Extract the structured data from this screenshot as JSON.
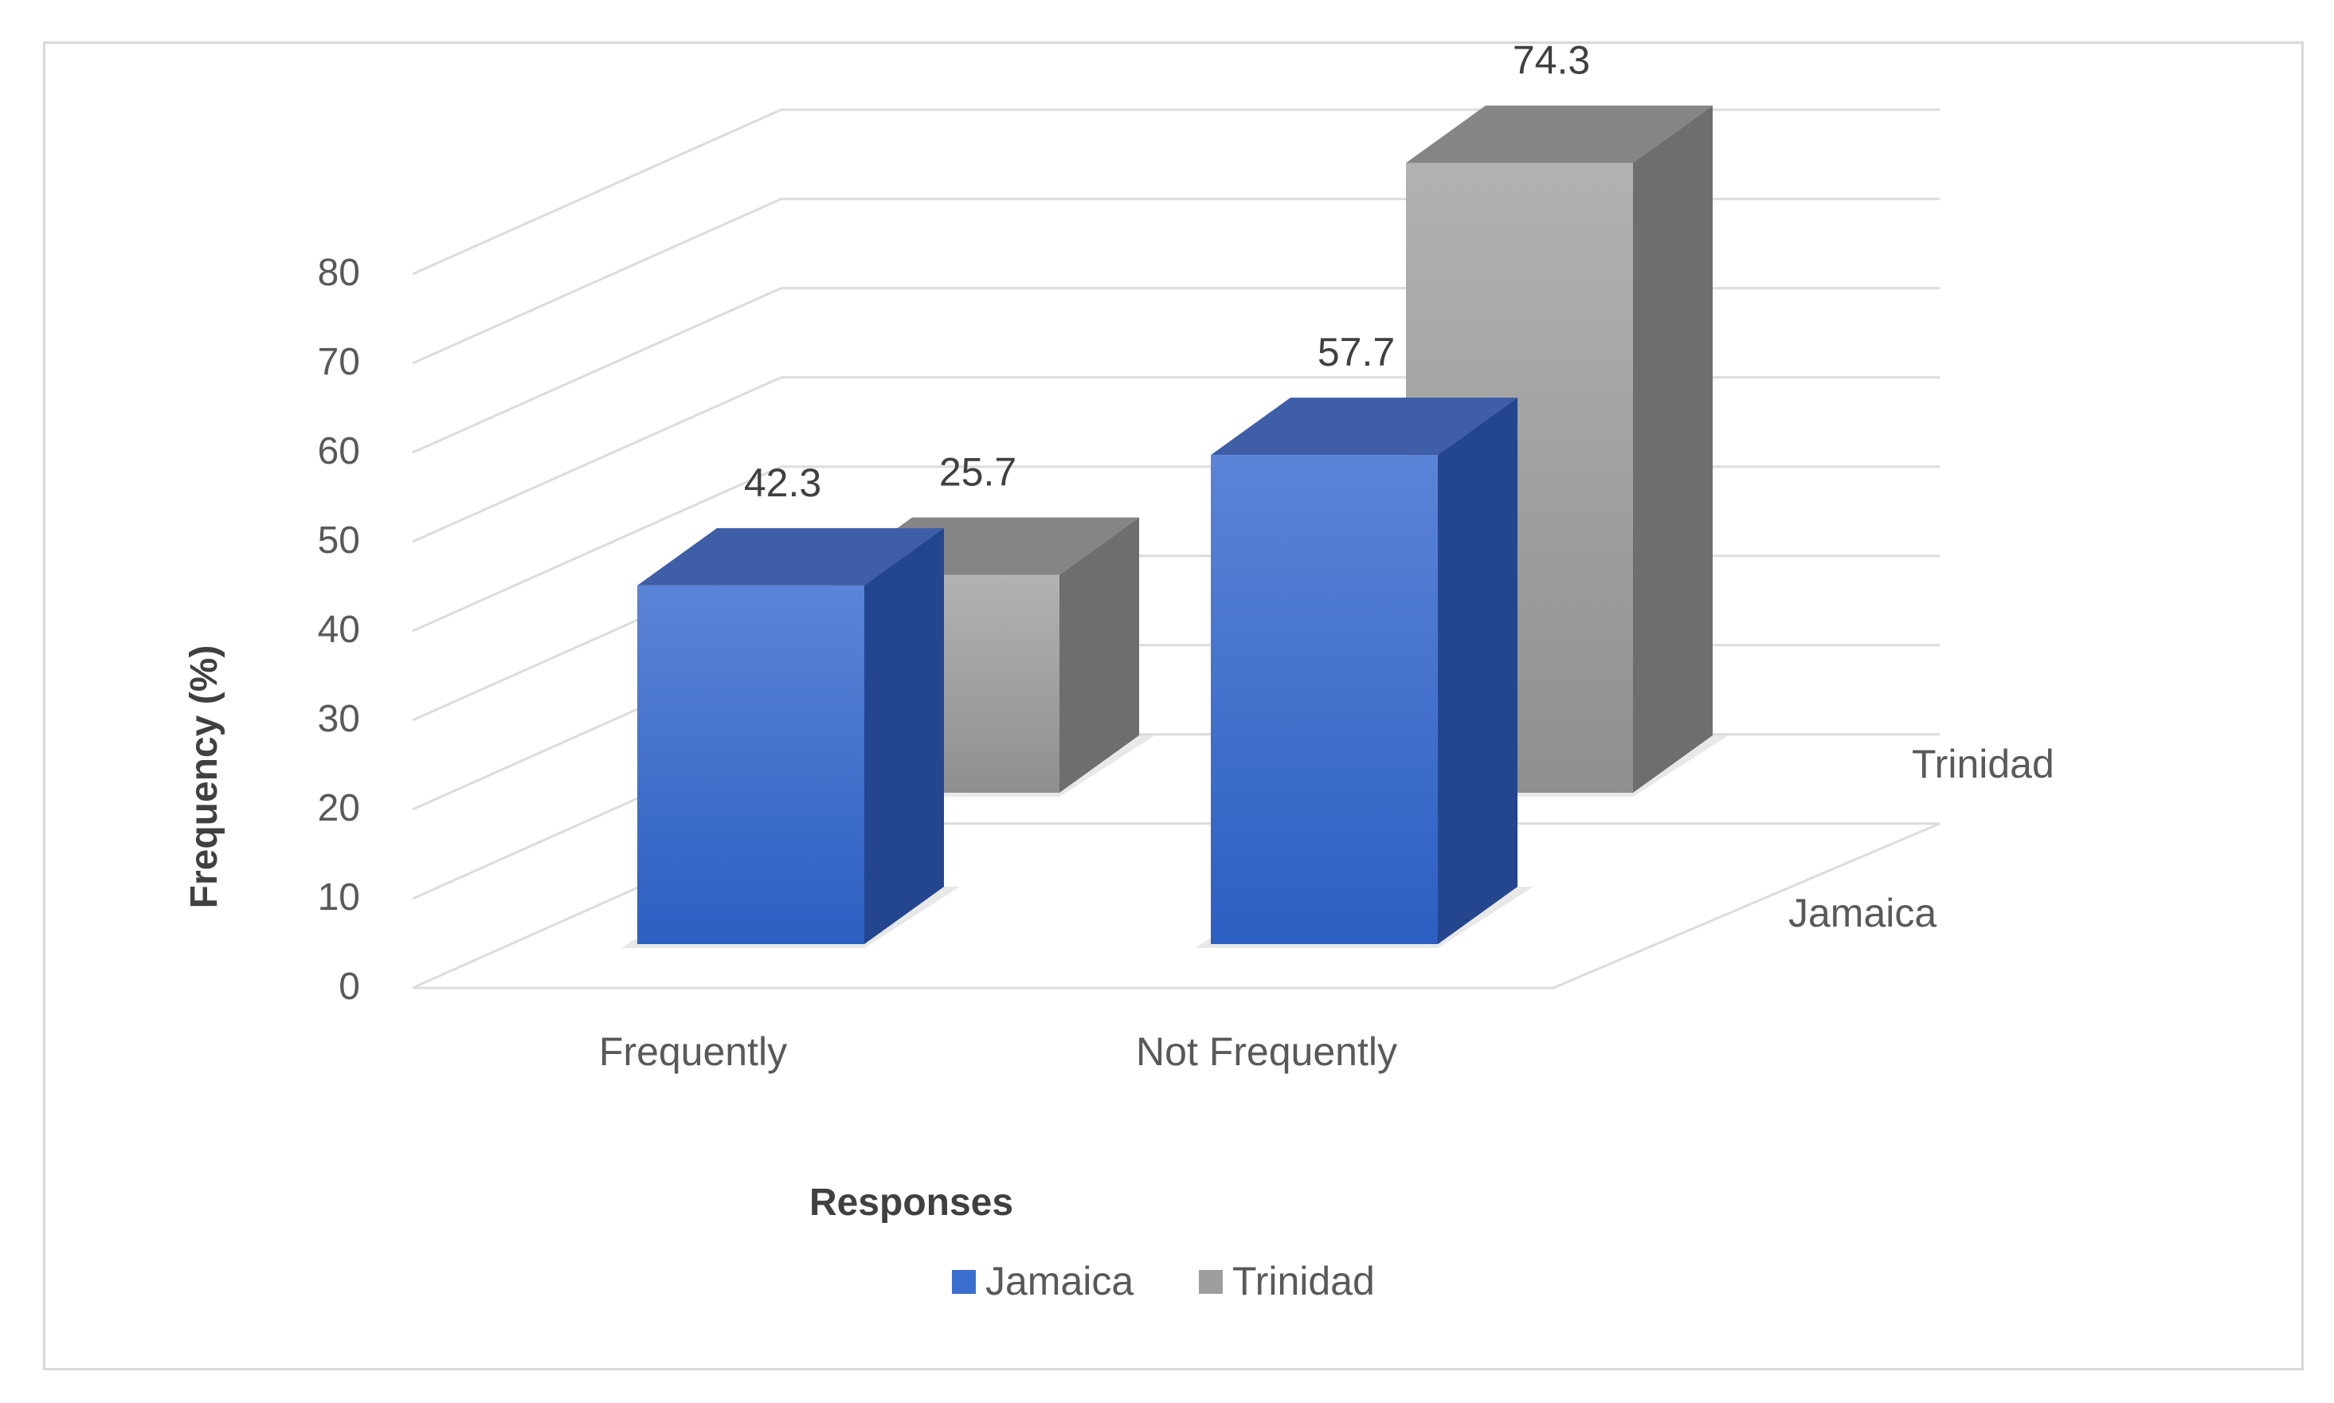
{
  "chart_data": {
    "type": "bar",
    "subtype": "3d-column",
    "title": "",
    "xlabel": "Responses",
    "ylabel": "Frequency (%)",
    "categories": [
      "Frequently",
      "Not Frequently"
    ],
    "yticks": [
      "0",
      "10",
      "20",
      "30",
      "40",
      "50",
      "60",
      "70",
      "80"
    ],
    "ylim": [
      0,
      80
    ],
    "grid": true,
    "legend_position": "bottom",
    "series": [
      {
        "name": "Jamaica",
        "values": [
          42.3,
          57.7
        ],
        "labels": [
          "42.3",
          "57.7"
        ],
        "color": "#3a6fd0"
      },
      {
        "name": "Trinidad",
        "values": [
          25.7,
          74.3
        ],
        "labels": [
          "25.7",
          "74.3"
        ],
        "color": "#9e9e9e"
      }
    ]
  }
}
